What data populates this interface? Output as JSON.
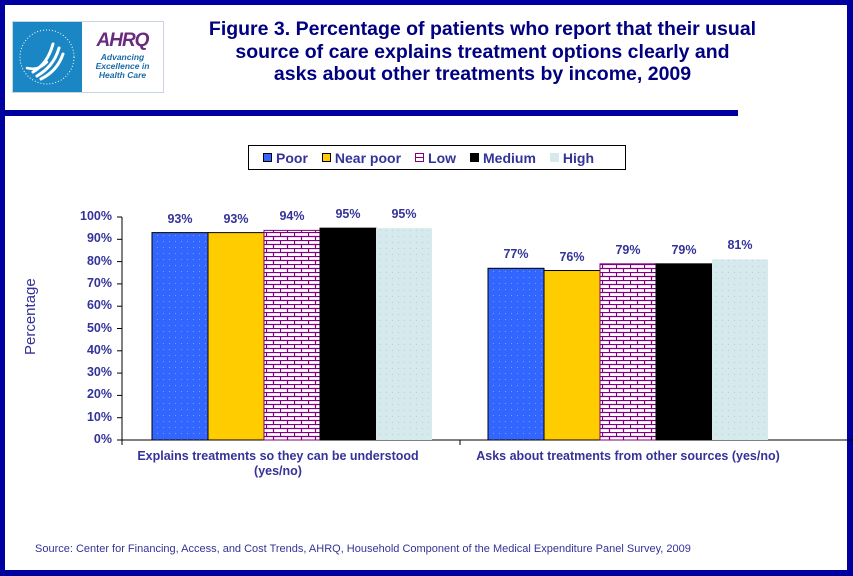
{
  "header": {
    "logo_hhs_alt": "HHS eagle logo",
    "logo_brand": "AHRQ",
    "logo_tagline": [
      "Advancing",
      "Excellence in",
      "Health Care"
    ],
    "title_lines": [
      "Figure 3. Percentage of patients who report that their usual",
      "source of care explains treatment options clearly and",
      "asks about other treatments by income, 2009"
    ]
  },
  "footer": {
    "source": "Source: Center for Financing, Access, and Cost Trends, AHRQ, Household Component of the Medical Expenditure Panel Survey,  2009"
  },
  "colors": {
    "frame": "#0000A0",
    "text": "#333399",
    "title": "#000080"
  },
  "chart_data": {
    "type": "bar",
    "title": "Figure 3. Percentage of patients who report that their usual source of care explains treatment options clearly and asks about other treatments by income, 2009",
    "xlabel": "",
    "ylabel": "Percentage",
    "ylim": [
      0,
      100
    ],
    "yticks": [
      "0%",
      "10%",
      "20%",
      "30%",
      "40%",
      "50%",
      "60%",
      "70%",
      "80%",
      "90%",
      "100%"
    ],
    "grid": false,
    "legend_position": "top-center",
    "categories": [
      [
        "Explains treatments so they can be understood",
        "(yes/no)"
      ],
      [
        "Asks about treatments from other sources (yes/no)"
      ]
    ],
    "series": [
      {
        "name": "Poor",
        "color": "#3366FF",
        "pattern": "dotted",
        "values": [
          93,
          77
        ]
      },
      {
        "name": "Near poor",
        "color": "#FFCC00",
        "pattern": "solid",
        "values": [
          93,
          76
        ]
      },
      {
        "name": "Low",
        "color": "#800080",
        "pattern": "brick",
        "values": [
          94,
          79
        ]
      },
      {
        "name": "Medium",
        "color": "#000000",
        "pattern": "solid",
        "values": [
          95,
          79
        ]
      },
      {
        "name": "High",
        "color": "#D6EAEE",
        "pattern": "dotted",
        "values": [
          95,
          81
        ]
      }
    ],
    "data_label_suffix": "%"
  }
}
